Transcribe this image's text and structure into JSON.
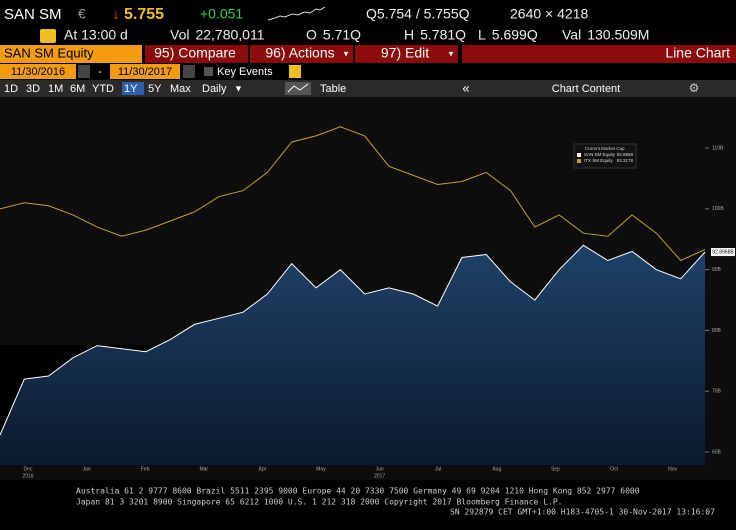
{
  "header": {
    "ticker": "SAN SM",
    "currency": "€",
    "price_arrow": "↓",
    "price": "5.755",
    "change": "+0.051",
    "quote": "Q5.754 / 5.755Q",
    "size": "2640 × 4218"
  },
  "stats": {
    "time": "At 13:00 d",
    "items": [
      {
        "label": "Vol",
        "value": "22,780,011"
      },
      {
        "label": "O",
        "value": "5.71Q"
      },
      {
        "label": "H",
        "value": "5.781Q"
      },
      {
        "label": "L",
        "value": "5.699Q"
      },
      {
        "label": "Val",
        "value": "130.509M"
      }
    ]
  },
  "toolbar": {
    "security": "SAN SM Equity",
    "buttons": [
      "95) Compare",
      "96) Actions",
      "97) Edit"
    ],
    "chart_type": "Line Chart"
  },
  "range": {
    "start": "11/30/2016",
    "separator": "-",
    "end": "11/30/2017",
    "key_events": "Key Events"
  },
  "controls": {
    "periods": [
      "1D",
      "3D",
      "1M",
      "6M",
      "YTD",
      "1Y",
      "5Y",
      "Max"
    ],
    "selected": 5,
    "frequency": "Daily",
    "table": "Table",
    "collapse": "«",
    "chart_content": "Chart Content"
  },
  "chart_data": {
    "type": "line",
    "legend_title": "Current Market Cap",
    "series": [
      {
        "name": "SAN SM Equity",
        "legend_value": "92.8968",
        "color": "#ffffff",
        "fill": true,
        "last_label": "92.8968B",
        "values": [
          62.8,
          72,
          72.5,
          75.5,
          77.5,
          77,
          76.5,
          78.5,
          81,
          82,
          83,
          86,
          91,
          87,
          90,
          86,
          87,
          86,
          84,
          92,
          92.5,
          88,
          85,
          90,
          94,
          91.5,
          93,
          90,
          88.5,
          92.8968
        ]
      },
      {
        "name": "ITX SM Equity",
        "legend_value": "93.3178",
        "color": "#c8a020",
        "fill": false,
        "values": [
          100,
          101,
          100.5,
          99,
          97,
          95.5,
          96.5,
          98,
          99.5,
          102,
          103,
          106,
          111,
          112,
          113.5,
          112,
          107,
          105.5,
          104,
          104.5,
          106,
          103,
          97,
          99,
          96,
          95.5,
          99,
          96,
          91.5,
          93.3178
        ]
      }
    ],
    "x_axis_labels": [
      {
        "month": "Dec",
        "year": "2016"
      },
      {
        "month": "Jan"
      },
      {
        "month": "Feb"
      },
      {
        "month": "Mar"
      },
      {
        "month": "Apr"
      },
      {
        "month": "May"
      },
      {
        "month": "Jun",
        "year": "2017"
      },
      {
        "month": "Jul"
      },
      {
        "month": "Aug"
      },
      {
        "month": "Sep"
      },
      {
        "month": "Oct"
      },
      {
        "month": "Nov"
      }
    ],
    "ylim": [
      55.4,
      118.4
    ],
    "yticks": [
      {
        "value": 110,
        "label": "110B"
      },
      {
        "value": 100,
        "label": "100B"
      },
      {
        "value": 90,
        "label": "90B"
      },
      {
        "value": 80,
        "label": "80B"
      },
      {
        "value": 70,
        "label": "70B"
      },
      {
        "value": 60,
        "label": "60B"
      }
    ]
  },
  "footer": {
    "lines": [
      "Australia 61 2 9777 8600 Brazil 5511 2395 9000 Europe 44 20 7330 7500 Germany 49 69 9204 1210 Hong Kong 852 2977 6000",
      "Japan 81 3 3201 8900 Singapore 65 6212 1000 U.S. 1 212 318 2000 Copyright 2017 Bloomberg Finance L.P.",
      "SN 292879 CET GMT+1:00 H183-4705-1 30-Nov-2017 13:16:07"
    ]
  }
}
